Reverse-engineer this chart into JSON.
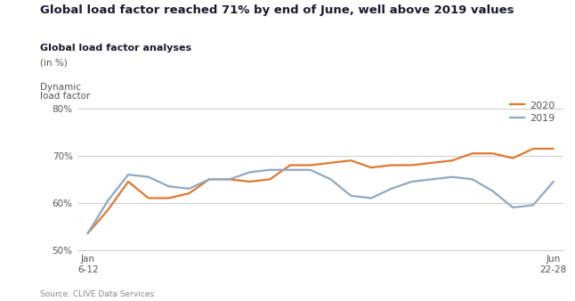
{
  "title": "Global load factor reached 71% by end of June, well above 2019 values",
  "subtitle": "Global load factor analyses",
  "subtitle2": "(in %)",
  "ylabel_line1": "Dynamic",
  "ylabel_line2": "load factor",
  "source": "Source: CLIVE Data Services",
  "x_start_label": "Jan\n6-12",
  "x_end_label": "Jun\n22-28",
  "ylim": [
    50,
    82
  ],
  "yticks": [
    50,
    60,
    70,
    80
  ],
  "ytick_labels": [
    "50%",
    "60%",
    "70%",
    "80%"
  ],
  "color_2020": "#E07830",
  "color_2019": "#8FA8C0",
  "line_width": 1.6,
  "series_2020": [
    53.5,
    58.5,
    64.5,
    61.0,
    61.0,
    62.0,
    65.0,
    65.0,
    64.5,
    65.0,
    68.0,
    68.0,
    68.5,
    69.0,
    67.5,
    68.0,
    68.0,
    68.5,
    69.0,
    70.5,
    70.5,
    69.5,
    71.5,
    71.5
  ],
  "series_2019": [
    53.5,
    60.5,
    66.0,
    65.5,
    63.5,
    63.0,
    65.0,
    65.0,
    66.5,
    67.0,
    67.0,
    67.0,
    65.0,
    61.5,
    61.0,
    63.0,
    64.5,
    65.0,
    65.5,
    65.0,
    62.5,
    59.0,
    59.5,
    64.5
  ],
  "n_points": 24,
  "title_color": "#1a1a2e",
  "subtitle_color": "#1a1a2e",
  "text_color": "#555555",
  "grid_color": "#cccccc",
  "bg_color": "#ffffff"
}
